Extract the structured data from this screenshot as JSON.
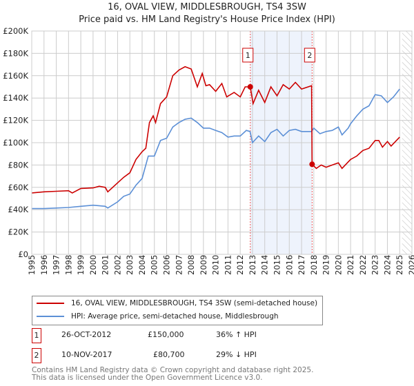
{
  "chart_data": {
    "type": "line",
    "title": "16, OVAL VIEW, MIDDLESBROUGH, TS4 3SW",
    "subtitle": "Price paid vs. HM Land Registry's House Price Index (HPI)",
    "xlim": [
      1995,
      2026
    ],
    "ylim": [
      0,
      200000
    ],
    "yticks": [
      0,
      20000,
      40000,
      60000,
      80000,
      100000,
      120000,
      140000,
      160000,
      180000,
      200000
    ],
    "ytick_labels": [
      "£0",
      "£20K",
      "£40K",
      "£60K",
      "£80K",
      "£100K",
      "£120K",
      "£140K",
      "£160K",
      "£180K",
      "£200K"
    ],
    "xticks": [
      "1995",
      "1996",
      "1997",
      "1998",
      "1999",
      "2000",
      "2001",
      "2002",
      "2003",
      "2004",
      "2005",
      "2006",
      "2007",
      "2008",
      "2009",
      "2010",
      "2011",
      "2012",
      "2013",
      "2014",
      "2015",
      "2016",
      "2017",
      "2018",
      "2019",
      "2020",
      "2021",
      "2022",
      "2023",
      "2024",
      "2025",
      "2026"
    ],
    "grid": true,
    "shaded_range": [
      2012.82,
      2017.86
    ],
    "forecast_hatch_from": 2025.2,
    "series": [
      {
        "name": "16, OVAL VIEW, MIDDLESBROUGH, TS4 3SW (semi-detached house)",
        "color": "#cc0000",
        "x": [
          1995,
          1996,
          1997,
          1998,
          1998.3,
          1999,
          2000,
          2000.5,
          2001,
          2001.2,
          2002,
          2002.5,
          2003,
          2003.5,
          2004,
          2004.3,
          2004.6,
          2004.9,
          2005.1,
          2005.5,
          2006,
          2006.5,
          2007,
          2007.5,
          2008,
          2008.5,
          2008.9,
          2009.2,
          2009.5,
          2010,
          2010.5,
          2010.9,
          2011.5,
          2012,
          2012.4,
          2012.82,
          2013.05,
          2013.5,
          2014,
          2014.5,
          2015,
          2015.5,
          2016,
          2016.5,
          2017,
          2017.82,
          2017.86,
          2018.2,
          2018.6,
          2019,
          2019.5,
          2020,
          2020.3,
          2021,
          2021.5,
          2022,
          2022.5,
          2023,
          2023.3,
          2023.6,
          2024,
          2024.3,
          2025
        ],
        "y": [
          55,
          56,
          56.5,
          57,
          55,
          59,
          59.5,
          61,
          60,
          56,
          64,
          69,
          73,
          85,
          92,
          95,
          118,
          124,
          118,
          135,
          141,
          160,
          165,
          168,
          166,
          150,
          162,
          151,
          152,
          146,
          153,
          141,
          145,
          141,
          150,
          150,
          135,
          147,
          136,
          150,
          142,
          152,
          148,
          154,
          148,
          151,
          80.7,
          77,
          80,
          78,
          80,
          82,
          77,
          85,
          88,
          93,
          95,
          102,
          102,
          96,
          101,
          97,
          105
        ]
      },
      {
        "name": "HPI: Average price, semi-detached house, Middlesbrough",
        "color": "#5b8fd6",
        "x": [
          1995,
          1996,
          1997,
          1998,
          1999,
          2000,
          2001,
          2001.2,
          2002,
          2002.5,
          2003,
          2003.5,
          2004,
          2004.5,
          2005,
          2005.5,
          2006,
          2006.5,
          2007,
          2007.5,
          2008,
          2008.5,
          2009,
          2009.5,
          2010,
          2010.5,
          2011,
          2011.5,
          2012,
          2012.5,
          2012.8,
          2013,
          2013.5,
          2014,
          2014.5,
          2015,
          2015.5,
          2016,
          2016.5,
          2017,
          2017.8,
          2018,
          2018.5,
          2019,
          2019.5,
          2020,
          2020.3,
          2020.8,
          2021,
          2021.5,
          2022,
          2022.5,
          2023,
          2023.5,
          2024,
          2024.5,
          2025
        ],
        "y": [
          41,
          41,
          41.5,
          42,
          43,
          44,
          43,
          41.5,
          47,
          52,
          54,
          62,
          68,
          88,
          88,
          102,
          104,
          114,
          118,
          121,
          122,
          118,
          113,
          113,
          111,
          109,
          105,
          106,
          106,
          111,
          110,
          100,
          106,
          101,
          109,
          112,
          106,
          111,
          112,
          110,
          110,
          113,
          108,
          110,
          111,
          114,
          107,
          113,
          117,
          124,
          130,
          133,
          143,
          142,
          136,
          141,
          148
        ]
      }
    ],
    "y_unit_multiplier": 1000,
    "annotations": [
      {
        "label": "1",
        "date": "26-OCT-2012",
        "x": 2012.82,
        "price": "£150,000",
        "y": 150000,
        "hpi": "36% ↑ HPI"
      },
      {
        "label": "2",
        "date": "10-NOV-2017",
        "x": 2017.86,
        "price": "£80,700",
        "y": 80700,
        "hpi": "29% ↓ HPI"
      }
    ],
    "legend_position": "below"
  },
  "footer": {
    "line1": "Contains HM Land Registry data © Crown copyright and database right 2025.",
    "line2": "This data is licensed under the Open Government Licence v3.0."
  }
}
